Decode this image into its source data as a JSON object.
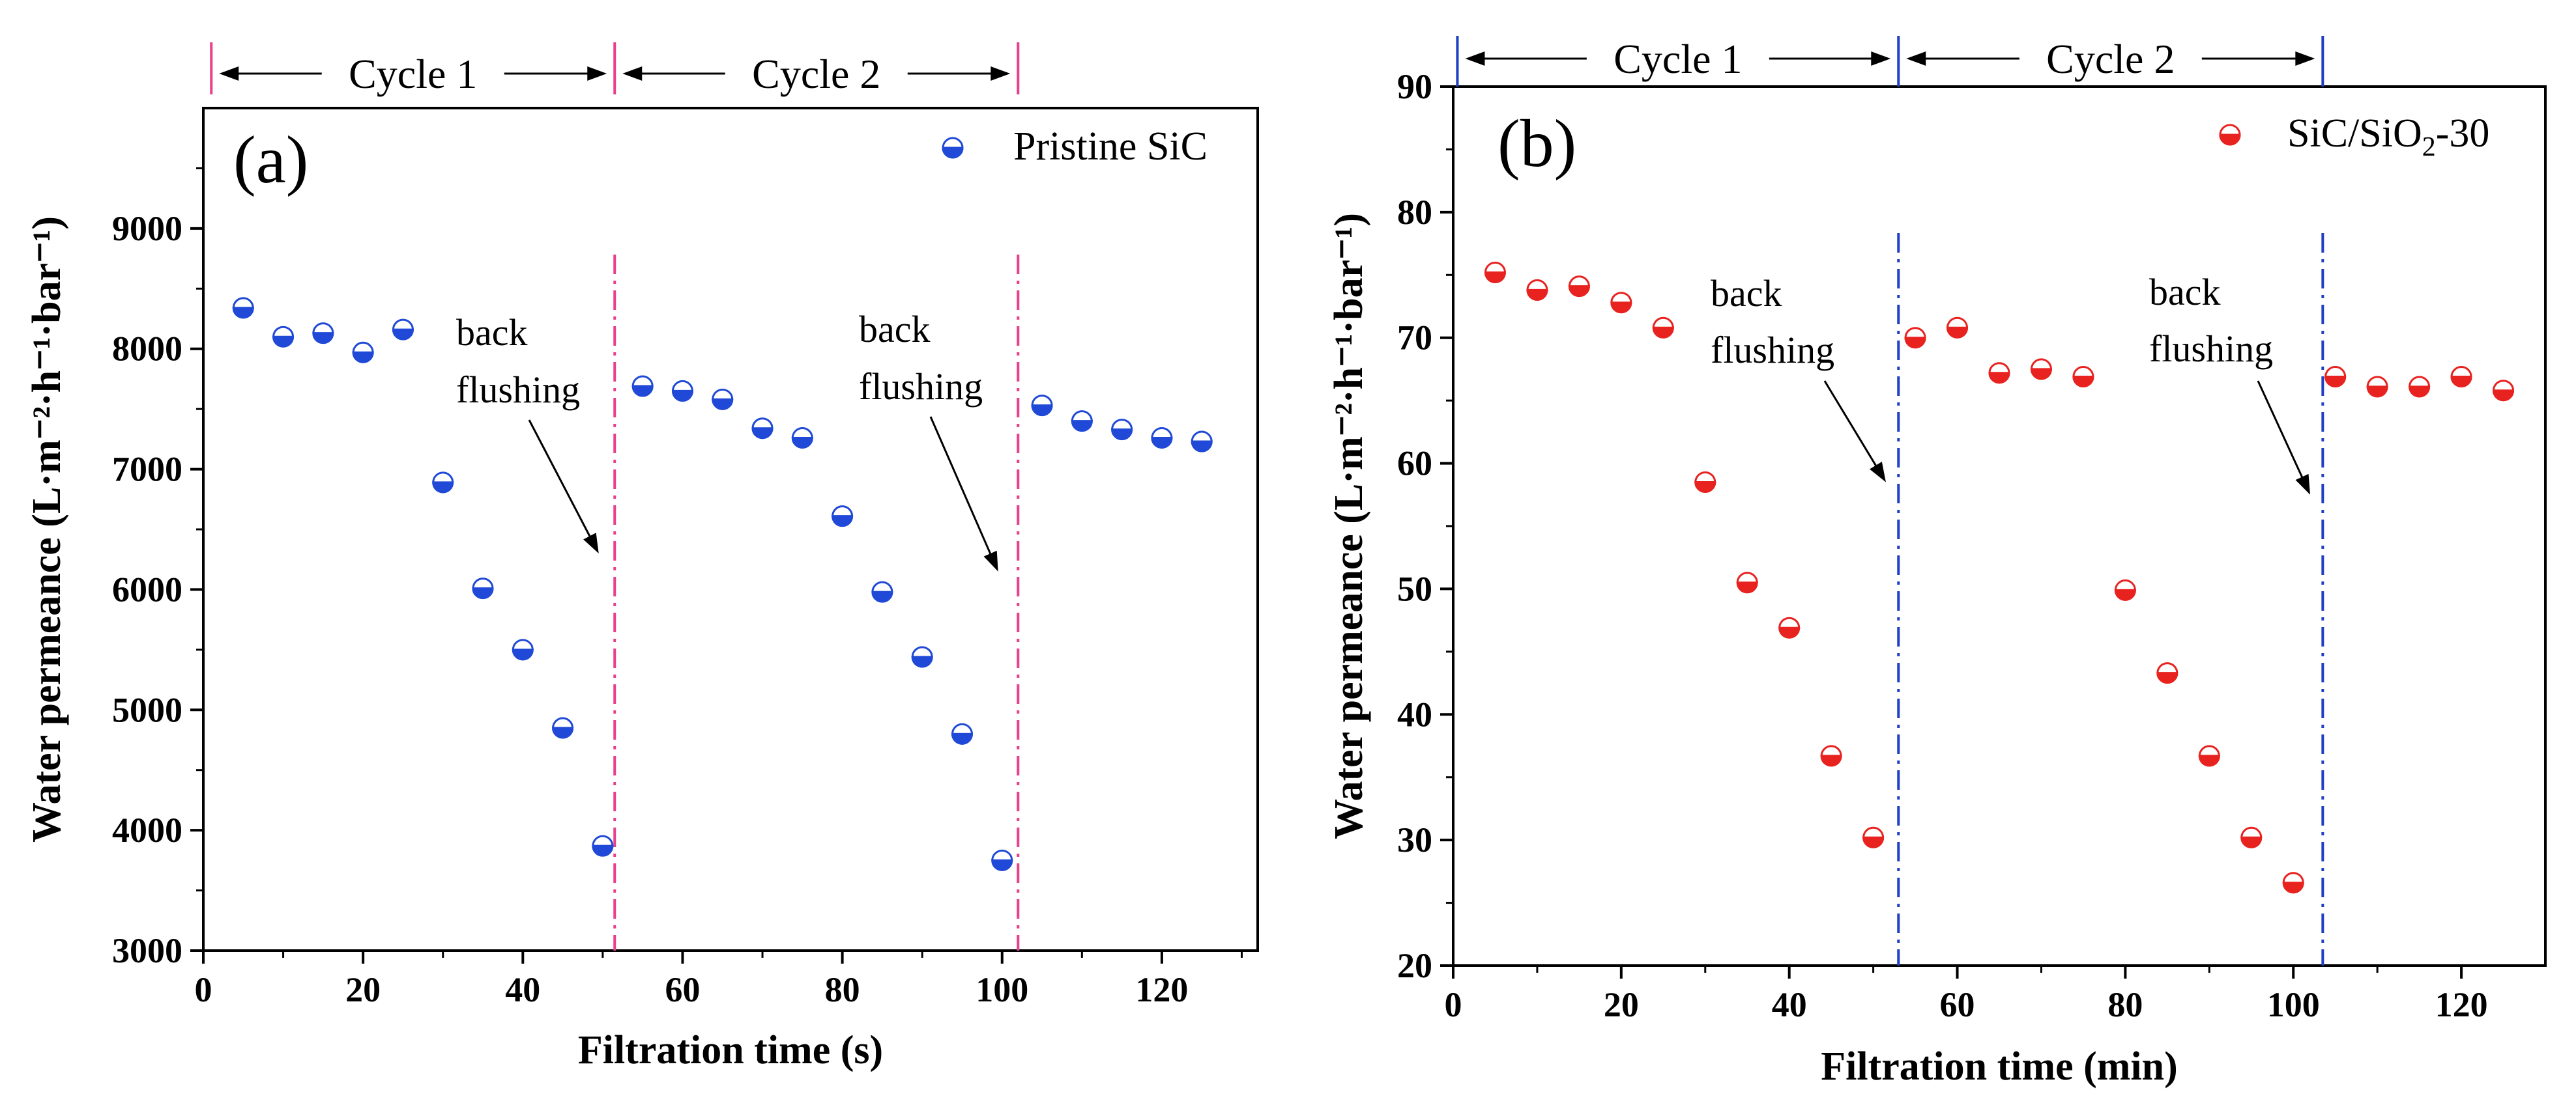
{
  "chart_data": [
    {
      "type": "scatter",
      "panel_label": "(a)",
      "xlabel": "Filtration time (s)",
      "ylabel": "Water permeance (L·m⁻²·h⁻¹·bar⁻¹)",
      "xlim": [
        0,
        132
      ],
      "ylim": [
        3000,
        10000
      ],
      "xticks": [
        0,
        20,
        40,
        60,
        80,
        100,
        120
      ],
      "yticks": [
        3000,
        4000,
        5000,
        6000,
        7000,
        8000,
        9000
      ],
      "legend": "Pristine SiC",
      "legend_position": "top-right",
      "marker_color": "#1f49d6",
      "divider_color": "#e8408c",
      "series": [
        {
          "name": "Pristine SiC",
          "x": [
            5,
            10,
            15,
            20,
            25,
            30,
            35,
            40,
            45,
            50,
            55,
            60,
            65,
            70,
            75,
            80,
            85,
            90,
            95,
            100,
            105,
            110,
            115,
            120,
            125
          ],
          "y": [
            8340,
            8100,
            8130,
            7970,
            8160,
            6890,
            6010,
            5500,
            4850,
            3870,
            7690,
            7650,
            7580,
            7340,
            7260,
            6610,
            5980,
            5440,
            4800,
            3750,
            7530,
            7400,
            7330,
            7260,
            7230
          ]
        }
      ],
      "dividers_x": [
        1,
        51.5,
        102
      ],
      "cycles": [
        "Cycle 1",
        "Cycle 2"
      ],
      "annotations": [
        {
          "line1": "back",
          "line2": "flushing"
        },
        {
          "line1": "back",
          "line2": "flushing"
        }
      ],
      "annotation_arrow_targets": [
        [
          49.5,
          6300
        ],
        [
          99.5,
          6150
        ]
      ]
    },
    {
      "type": "scatter",
      "panel_label": "(b)",
      "xlabel": "Filtration time (min)",
      "ylabel": "Water permeance (L·m⁻²·h⁻¹·bar⁻¹)",
      "xlim": [
        0,
        130
      ],
      "ylim": [
        20,
        90
      ],
      "xticks": [
        0,
        20,
        40,
        60,
        80,
        100,
        120
      ],
      "yticks": [
        20,
        30,
        40,
        50,
        60,
        70,
        80,
        90
      ],
      "legend_main": "SiC/SiO",
      "legend_sub": "2",
      "legend_tail": "-30",
      "legend_position": "top-right",
      "marker_color": "#e8221f",
      "divider_color": "#1f3fc4",
      "series": [
        {
          "name": "SiC/SiO2-30",
          "x": [
            5,
            10,
            15,
            20,
            25,
            30,
            35,
            40,
            45,
            50,
            55,
            60,
            65,
            70,
            75,
            80,
            85,
            90,
            95,
            100,
            105,
            110,
            115,
            120,
            125
          ],
          "y": [
            75.2,
            73.8,
            74.1,
            72.8,
            70.8,
            58.5,
            50.5,
            46.9,
            36.7,
            30.2,
            70.0,
            70.8,
            67.2,
            67.5,
            66.9,
            49.9,
            43.3,
            36.7,
            30.2,
            26.6,
            66.9,
            66.1,
            66.1,
            66.9,
            65.8
          ]
        }
      ],
      "dividers_x": [
        0.5,
        53,
        103.5
      ],
      "cycles": [
        "Cycle 1",
        "Cycle 2"
      ],
      "annotations": [
        {
          "line1": "back",
          "line2": "flushing"
        },
        {
          "line1": "back",
          "line2": "flushing"
        }
      ],
      "annotation_arrow_targets": [
        [
          51.5,
          58.5
        ],
        [
          102,
          57.5
        ]
      ]
    }
  ]
}
